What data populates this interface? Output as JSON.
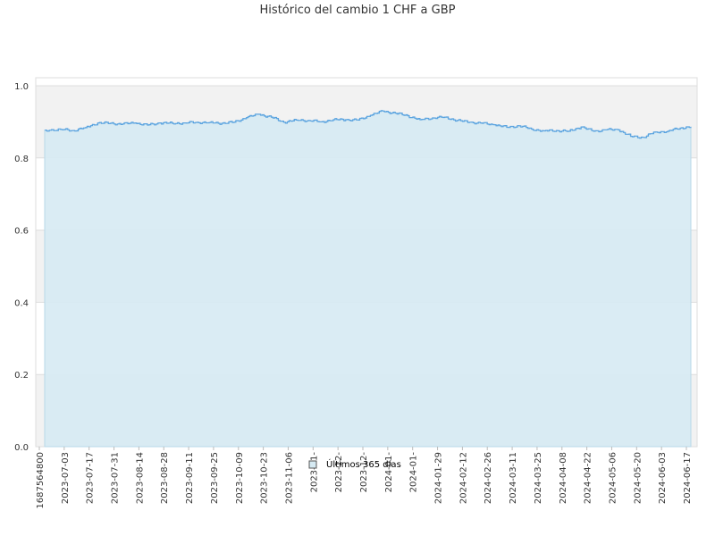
{
  "chart_data": {
    "type": "area",
    "title": "Histórico del cambio 1 CHF a GBP",
    "xlabel": "",
    "ylabel": "",
    "ylim": [
      0,
      1.0
    ],
    "y_ticks": [
      0.0,
      0.2,
      0.4,
      0.6,
      0.8,
      1.0
    ],
    "y_tick_labels": [
      "0.0",
      "0.2",
      "0.4",
      "0.6",
      "0.8",
      "1.0"
    ],
    "x_tick_labels": [
      "1687564800",
      "2023-07-03",
      "2023-07-17",
      "2023-07-31",
      "2023-08-14",
      "2023-08-28",
      "2023-09-11",
      "2023-09-25",
      "2023-10-09",
      "2023-10-23",
      "2023-11-06",
      "2023-11-",
      "2023-12-",
      "2023-12-",
      "2024-01-",
      "2024-01-",
      "2024-01-29",
      "2024-02-12",
      "2024-02-26",
      "2024-03-11",
      "2024-03-25",
      "2024-04-08",
      "2024-04-22",
      "2024-05-06",
      "2024-05-20",
      "2024-06-03",
      "2024-06-17"
    ],
    "grid": true,
    "legend": {
      "placement": "bottom-center",
      "label": "Últimos 365 días"
    },
    "colors": {
      "line": "#5aa3e0",
      "fill": "#d6eaf3",
      "band": "#f2f2f2",
      "grid": "#dddddd"
    },
    "series": [
      {
        "name": "Últimos 365 días",
        "x": [
          "2023-06-24",
          "2023-07-03",
          "2023-07-10",
          "2023-07-17",
          "2023-07-24",
          "2023-07-31",
          "2023-08-07",
          "2023-08-14",
          "2023-08-21",
          "2023-08-28",
          "2023-09-04",
          "2023-09-11",
          "2023-09-18",
          "2023-09-25",
          "2023-10-02",
          "2023-10-09",
          "2023-10-16",
          "2023-10-23",
          "2023-10-30",
          "2023-11-06",
          "2023-11-13",
          "2023-11-20",
          "2023-11-27",
          "2023-12-04",
          "2023-12-11",
          "2023-12-18",
          "2023-12-25",
          "2024-01-01",
          "2024-01-08",
          "2024-01-15",
          "2024-01-22",
          "2024-01-29",
          "2024-02-05",
          "2024-02-12",
          "2024-02-19",
          "2024-02-26",
          "2024-03-04",
          "2024-03-11",
          "2024-03-18",
          "2024-03-25",
          "2024-04-01",
          "2024-04-08",
          "2024-04-15",
          "2024-04-22",
          "2024-04-29",
          "2024-05-06",
          "2024-05-13",
          "2024-05-20",
          "2024-05-27",
          "2024-06-03",
          "2024-06-10",
          "2024-06-17",
          "2024-06-23"
        ],
        "y": [
          0.877,
          0.879,
          0.876,
          0.884,
          0.897,
          0.896,
          0.894,
          0.897,
          0.891,
          0.897,
          0.896,
          0.897,
          0.899,
          0.898,
          0.896,
          0.899,
          0.912,
          0.921,
          0.913,
          0.899,
          0.905,
          0.904,
          0.9,
          0.906,
          0.906,
          0.905,
          0.918,
          0.93,
          0.924,
          0.917,
          0.906,
          0.911,
          0.913,
          0.904,
          0.899,
          0.896,
          0.892,
          0.885,
          0.889,
          0.88,
          0.875,
          0.876,
          0.874,
          0.886,
          0.874,
          0.878,
          0.878,
          0.86,
          0.857,
          0.872,
          0.874,
          0.883,
          0.886
        ]
      }
    ]
  }
}
